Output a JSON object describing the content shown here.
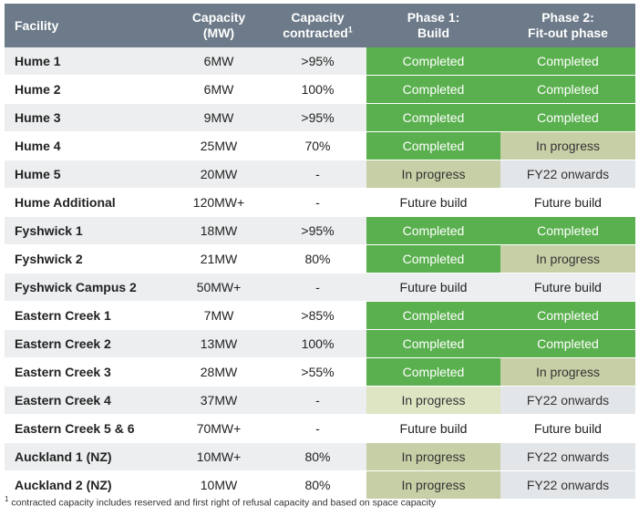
{
  "table": {
    "headers": {
      "facility": "Facility",
      "capacity_l1": "Capacity",
      "capacity_l2": "(MW)",
      "contracted_l1": "Capacity",
      "contracted_l2": "contracted",
      "contracted_sup": "1",
      "phase1_l1": "Phase 1:",
      "phase1_l2": "Build",
      "phase2_l1": "Phase 2:",
      "phase2_l2": "Fit-out phase"
    },
    "rows": [
      {
        "facility": "Hume 1",
        "capacity": "6MW",
        "contracted": ">95%",
        "phase1": "Completed",
        "phase2": "Completed"
      },
      {
        "facility": "Hume 2",
        "capacity": "6MW",
        "contracted": "100%",
        "phase1": "Completed",
        "phase2": "Completed"
      },
      {
        "facility": "Hume 3",
        "capacity": "9MW",
        "contracted": ">95%",
        "phase1": "Completed",
        "phase2": "Completed"
      },
      {
        "facility": "Hume 4",
        "capacity": "25MW",
        "contracted": "70%",
        "phase1": "Completed",
        "phase2": "In progress"
      },
      {
        "facility": "Hume 5",
        "capacity": "20MW",
        "contracted": "-",
        "phase1": "In progress",
        "phase2": "FY22 onwards"
      },
      {
        "facility": "Hume Additional",
        "capacity": "120MW+",
        "contracted": "-",
        "phase1": "Future build",
        "phase2": "Future build"
      },
      {
        "facility": "Fyshwick 1",
        "capacity": "18MW",
        "contracted": ">95%",
        "phase1": "Completed",
        "phase2": "Completed"
      },
      {
        "facility": "Fyshwick 2",
        "capacity": "21MW",
        "contracted": "80%",
        "phase1": "Completed",
        "phase2": "In progress"
      },
      {
        "facility": "Fyshwick Campus 2",
        "capacity": "50MW+",
        "contracted": "-",
        "phase1": "Future build",
        "phase2": "Future build"
      },
      {
        "facility": "Eastern Creek 1",
        "capacity": "7MW",
        "contracted": ">85%",
        "phase1": "Completed",
        "phase2": "Completed"
      },
      {
        "facility": "Eastern Creek 2",
        "capacity": "13MW",
        "contracted": "100%",
        "phase1": "Completed",
        "phase2": "Completed"
      },
      {
        "facility": "Eastern Creek 3",
        "capacity": "28MW",
        "contracted": ">55%",
        "phase1": "Completed",
        "phase2": "In progress"
      },
      {
        "facility": "Eastern Creek 4",
        "capacity": "37MW",
        "contracted": "-",
        "phase1": "In progress",
        "phase2": "FY22 onwards"
      },
      {
        "facility": "Eastern Creek 5 & 6",
        "capacity": "70MW+",
        "contracted": "-",
        "phase1": "Future build",
        "phase2": "Future build"
      },
      {
        "facility": "Auckland 1 (NZ)",
        "capacity": "10MW+",
        "contracted": "80%",
        "phase1": "In progress",
        "phase2": "FY22 onwards"
      },
      {
        "facility": "Auckland 2 (NZ)",
        "capacity": "10MW",
        "contracted": "80%",
        "phase1": "In progress",
        "phase2": "FY22 onwards"
      }
    ]
  },
  "footnote": {
    "mark": "1",
    "text": "contracted capacity includes reserved and first right of refusal capacity and based on space capacity"
  },
  "colors": {
    "header_bg": "#6c7a89",
    "completed": "#5ab04e",
    "in_progress": "#c7cfa6",
    "fy22": "#e3e6e8",
    "stripe": "#eceeef"
  }
}
